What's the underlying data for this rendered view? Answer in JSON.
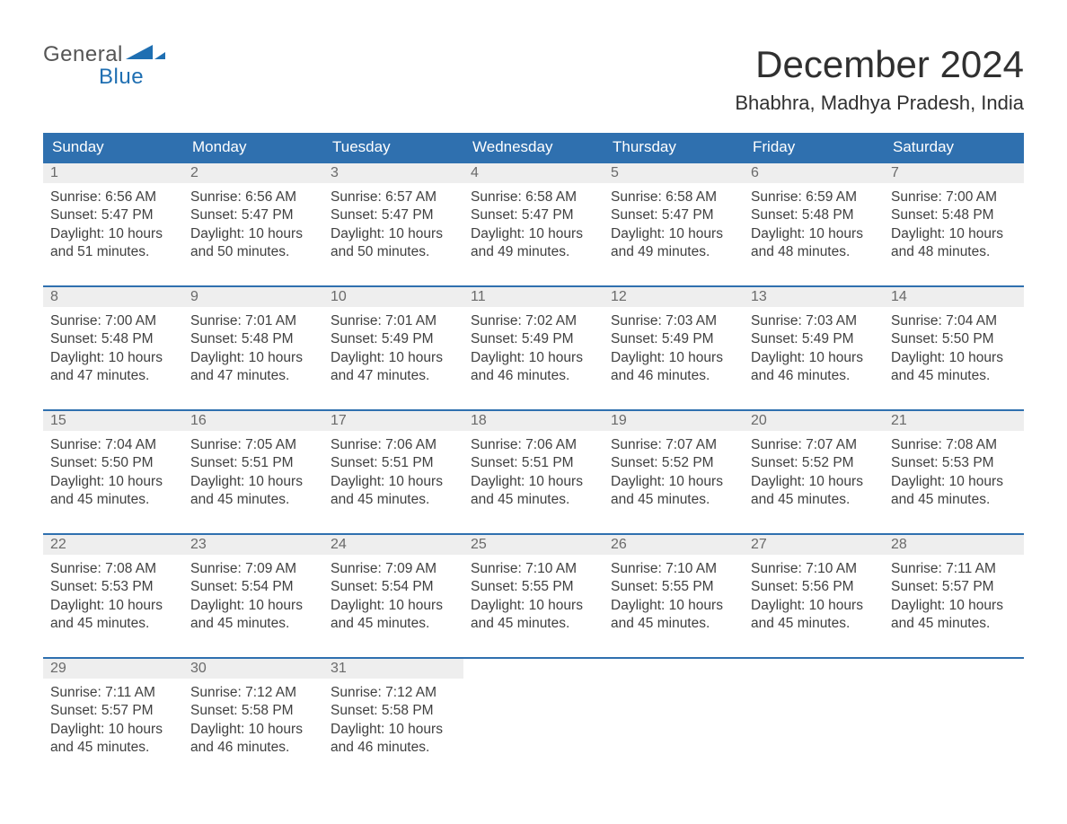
{
  "logo": {
    "word1": "General",
    "word2": "Blue",
    "icon_color": "#1f6fb2"
  },
  "title": "December 2024",
  "location": "Bhabhra, Madhya Pradesh, India",
  "colors": {
    "header_bg": "#2f70af",
    "header_text": "#ffffff",
    "daynum_bg": "#eeeeee",
    "daynum_text": "#6a6a6a",
    "body_text": "#404040",
    "row_border": "#2f70af"
  },
  "day_headers": [
    "Sunday",
    "Monday",
    "Tuesday",
    "Wednesday",
    "Thursday",
    "Friday",
    "Saturday"
  ],
  "weeks": [
    [
      {
        "n": "1",
        "sunrise": "6:56 AM",
        "sunset": "5:47 PM",
        "dl": "10 hours and 51 minutes."
      },
      {
        "n": "2",
        "sunrise": "6:56 AM",
        "sunset": "5:47 PM",
        "dl": "10 hours and 50 minutes."
      },
      {
        "n": "3",
        "sunrise": "6:57 AM",
        "sunset": "5:47 PM",
        "dl": "10 hours and 50 minutes."
      },
      {
        "n": "4",
        "sunrise": "6:58 AM",
        "sunset": "5:47 PM",
        "dl": "10 hours and 49 minutes."
      },
      {
        "n": "5",
        "sunrise": "6:58 AM",
        "sunset": "5:47 PM",
        "dl": "10 hours and 49 minutes."
      },
      {
        "n": "6",
        "sunrise": "6:59 AM",
        "sunset": "5:48 PM",
        "dl": "10 hours and 48 minutes."
      },
      {
        "n": "7",
        "sunrise": "7:00 AM",
        "sunset": "5:48 PM",
        "dl": "10 hours and 48 minutes."
      }
    ],
    [
      {
        "n": "8",
        "sunrise": "7:00 AM",
        "sunset": "5:48 PM",
        "dl": "10 hours and 47 minutes."
      },
      {
        "n": "9",
        "sunrise": "7:01 AM",
        "sunset": "5:48 PM",
        "dl": "10 hours and 47 minutes."
      },
      {
        "n": "10",
        "sunrise": "7:01 AM",
        "sunset": "5:49 PM",
        "dl": "10 hours and 47 minutes."
      },
      {
        "n": "11",
        "sunrise": "7:02 AM",
        "sunset": "5:49 PM",
        "dl": "10 hours and 46 minutes."
      },
      {
        "n": "12",
        "sunrise": "7:03 AM",
        "sunset": "5:49 PM",
        "dl": "10 hours and 46 minutes."
      },
      {
        "n": "13",
        "sunrise": "7:03 AM",
        "sunset": "5:49 PM",
        "dl": "10 hours and 46 minutes."
      },
      {
        "n": "14",
        "sunrise": "7:04 AM",
        "sunset": "5:50 PM",
        "dl": "10 hours and 45 minutes."
      }
    ],
    [
      {
        "n": "15",
        "sunrise": "7:04 AM",
        "sunset": "5:50 PM",
        "dl": "10 hours and 45 minutes."
      },
      {
        "n": "16",
        "sunrise": "7:05 AM",
        "sunset": "5:51 PM",
        "dl": "10 hours and 45 minutes."
      },
      {
        "n": "17",
        "sunrise": "7:06 AM",
        "sunset": "5:51 PM",
        "dl": "10 hours and 45 minutes."
      },
      {
        "n": "18",
        "sunrise": "7:06 AM",
        "sunset": "5:51 PM",
        "dl": "10 hours and 45 minutes."
      },
      {
        "n": "19",
        "sunrise": "7:07 AM",
        "sunset": "5:52 PM",
        "dl": "10 hours and 45 minutes."
      },
      {
        "n": "20",
        "sunrise": "7:07 AM",
        "sunset": "5:52 PM",
        "dl": "10 hours and 45 minutes."
      },
      {
        "n": "21",
        "sunrise": "7:08 AM",
        "sunset": "5:53 PM",
        "dl": "10 hours and 45 minutes."
      }
    ],
    [
      {
        "n": "22",
        "sunrise": "7:08 AM",
        "sunset": "5:53 PM",
        "dl": "10 hours and 45 minutes."
      },
      {
        "n": "23",
        "sunrise": "7:09 AM",
        "sunset": "5:54 PM",
        "dl": "10 hours and 45 minutes."
      },
      {
        "n": "24",
        "sunrise": "7:09 AM",
        "sunset": "5:54 PM",
        "dl": "10 hours and 45 minutes."
      },
      {
        "n": "25",
        "sunrise": "7:10 AM",
        "sunset": "5:55 PM",
        "dl": "10 hours and 45 minutes."
      },
      {
        "n": "26",
        "sunrise": "7:10 AM",
        "sunset": "5:55 PM",
        "dl": "10 hours and 45 minutes."
      },
      {
        "n": "27",
        "sunrise": "7:10 AM",
        "sunset": "5:56 PM",
        "dl": "10 hours and 45 minutes."
      },
      {
        "n": "28",
        "sunrise": "7:11 AM",
        "sunset": "5:57 PM",
        "dl": "10 hours and 45 minutes."
      }
    ],
    [
      {
        "n": "29",
        "sunrise": "7:11 AM",
        "sunset": "5:57 PM",
        "dl": "10 hours and 45 minutes."
      },
      {
        "n": "30",
        "sunrise": "7:12 AM",
        "sunset": "5:58 PM",
        "dl": "10 hours and 46 minutes."
      },
      {
        "n": "31",
        "sunrise": "7:12 AM",
        "sunset": "5:58 PM",
        "dl": "10 hours and 46 minutes."
      },
      null,
      null,
      null,
      null
    ]
  ],
  "labels": {
    "sunrise": "Sunrise: ",
    "sunset": "Sunset: ",
    "daylight": "Daylight: "
  }
}
